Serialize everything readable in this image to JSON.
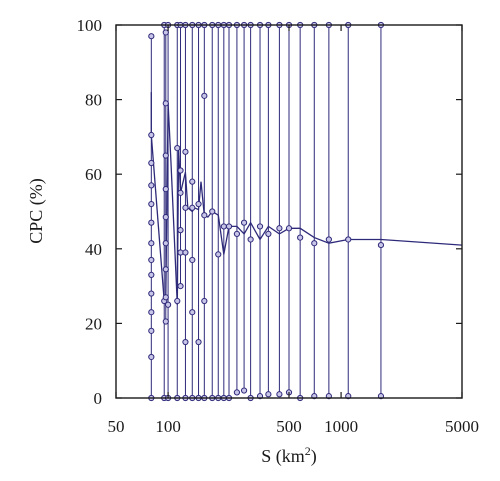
{
  "chart_data": {
    "type": "line",
    "xlabel": "S (km",
    "xlabel_sup": "2",
    "xlabel_close": ")",
    "ylabel": "CPC (%)",
    "x_scale": "log",
    "xlim": [
      50,
      5000
    ],
    "ylim": [
      0,
      100
    ],
    "x_ticks": [
      {
        "value": 50,
        "label": "50"
      },
      {
        "value": 100,
        "label": "100"
      },
      {
        "value": 500,
        "label": "500"
      },
      {
        "value": 1000,
        "label": "1000"
      },
      {
        "value": 5000,
        "label": "5000"
      }
    ],
    "y_ticks": [
      {
        "value": 0,
        "label": "0"
      },
      {
        "value": 20,
        "label": "20"
      },
      {
        "value": 40,
        "label": "40"
      },
      {
        "value": 60,
        "label": "60"
      },
      {
        "value": 80,
        "label": "80"
      },
      {
        "value": 100,
        "label": "100"
      }
    ],
    "grid": false,
    "line_color": "#2e2a7a",
    "marker_fill": "#c9c5e8",
    "series": [
      {
        "x": [
          80,
          80,
          95,
          97,
          100,
          104,
          113,
          115,
          118,
          126,
          130,
          138,
          142,
          150,
          155,
          162,
          170,
          180,
          195,
          210,
          225,
          250,
          275,
          300,
          340,
          380,
          440,
          500,
          580,
          700,
          850,
          1100,
          1700,
          5000
        ],
        "y": [
          82,
          70.5,
          26,
          27,
          79,
          63,
          25,
          67,
          55,
          60.5,
          51,
          50,
          51,
          50.5,
          58,
          49,
          48.5,
          50,
          49,
          38.5,
          46,
          46,
          44,
          47,
          42.5,
          46,
          44,
          45.5,
          45.5,
          43,
          41.5,
          42.5,
          42.5,
          41
        ]
      }
    ],
    "verticals": [
      {
        "x": 80,
        "points": [
          0,
          11,
          18,
          23,
          28,
          33,
          37,
          41.5,
          47,
          52,
          57,
          63,
          70.5,
          97
        ]
      },
      {
        "x": 95,
        "points": [
          0,
          26,
          100
        ]
      },
      {
        "x": 97,
        "points": [
          20.5,
          27,
          34.5,
          41.5,
          48.5,
          56,
          65,
          79,
          98
        ]
      },
      {
        "x": 100,
        "points": [
          0,
          25,
          100
        ]
      },
      {
        "x": 113,
        "points": [
          0,
          26,
          67,
          100
        ]
      },
      {
        "x": 118,
        "points": [
          30,
          39,
          45,
          55,
          61,
          100
        ]
      },
      {
        "x": 126,
        "points": [
          0,
          15,
          39,
          51,
          66,
          100
        ]
      },
      {
        "x": 138,
        "points": [
          0,
          23,
          37,
          51,
          58,
          100
        ]
      },
      {
        "x": 150,
        "points": [
          0,
          15,
          52,
          100
        ]
      },
      {
        "x": 162,
        "points": [
          0,
          26,
          49,
          81,
          100
        ]
      },
      {
        "x": 180,
        "points": [
          0,
          50,
          100
        ]
      },
      {
        "x": 195,
        "points": [
          0,
          38.5,
          100
        ]
      },
      {
        "x": 210,
        "points": [
          0,
          46,
          100
        ]
      },
      {
        "x": 225,
        "points": [
          0,
          46,
          100
        ]
      },
      {
        "x": 250,
        "points": [
          1.5,
          44,
          100
        ]
      },
      {
        "x": 275,
        "points": [
          2,
          47,
          100
        ]
      },
      {
        "x": 300,
        "points": [
          0,
          42.5,
          100
        ]
      },
      {
        "x": 340,
        "points": [
          0.5,
          46,
          100
        ]
      },
      {
        "x": 380,
        "points": [
          1,
          44,
          100
        ]
      },
      {
        "x": 440,
        "points": [
          1,
          45.5,
          100
        ]
      },
      {
        "x": 500,
        "points": [
          1.5,
          45.5,
          100
        ]
      },
      {
        "x": 580,
        "points": [
          0,
          43,
          100
        ]
      },
      {
        "x": 700,
        "points": [
          0.5,
          41.5,
          100
        ]
      },
      {
        "x": 850,
        "points": [
          0.5,
          42.5,
          100
        ]
      },
      {
        "x": 1100,
        "points": [
          0.5,
          42.5,
          100
        ]
      },
      {
        "x": 1700,
        "points": [
          0.5,
          41,
          100
        ]
      }
    ]
  }
}
